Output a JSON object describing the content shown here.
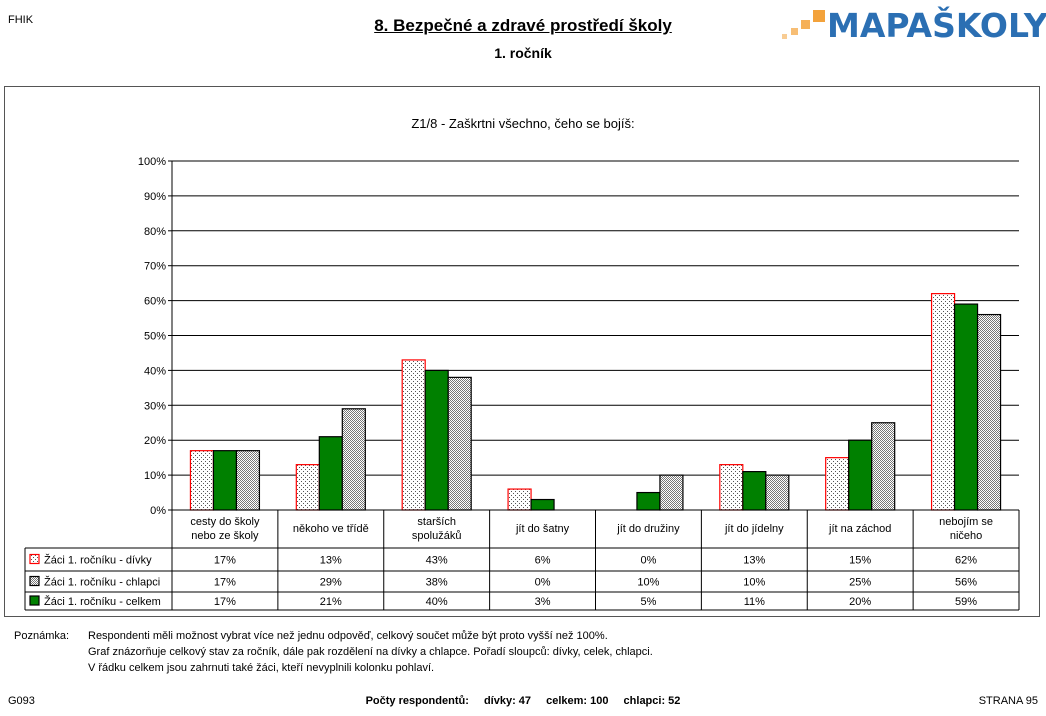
{
  "header": {
    "corner_left": "FHIK",
    "title": "8. Bezpečné a zdravé prostředí školy",
    "subtitle": "1. ročník",
    "logo_text": "MAPAŠKOLY"
  },
  "chart_data": {
    "type": "bar",
    "title": "Z1/8 - Zaškrtni všechno, čeho se bojíš:",
    "ylim": [
      0,
      100
    ],
    "yticks": [
      "0%",
      "10%",
      "20%",
      "30%",
      "40%",
      "50%",
      "60%",
      "70%",
      "80%",
      "90%",
      "100%"
    ],
    "grid": true,
    "legend": "table-left",
    "categories": [
      "cesty do školy nebo ze školy",
      "někoho ve třídě",
      "starších spolužáků",
      "jít do šatny",
      "jít do družiny",
      "jít do jídelny",
      "jít na záchod",
      "nebojím se ničeho"
    ],
    "category_lines": [
      [
        "cesty do školy",
        "nebo ze školy"
      ],
      [
        "někoho ve třídě"
      ],
      [
        "starších",
        "spolužáků"
      ],
      [
        "jít do šatny"
      ],
      [
        "jít do družiny"
      ],
      [
        "jít do jídelny"
      ],
      [
        "jít na záchod"
      ],
      [
        "nebojím se",
        "ničeho"
      ]
    ],
    "series": [
      {
        "name": "Žáci 1. ročníku - dívky",
        "values": [
          17,
          13,
          43,
          6,
          0,
          13,
          15,
          62
        ],
        "labels": [
          "17%",
          "13%",
          "43%",
          "6%",
          "0%",
          "13%",
          "15%",
          "62%"
        ],
        "color": "#ff0000"
      },
      {
        "name": "Žáci 1. ročníku - chlapci",
        "values": [
          17,
          29,
          38,
          0,
          10,
          10,
          25,
          56
        ],
        "labels": [
          "17%",
          "29%",
          "38%",
          "0%",
          "10%",
          "10%",
          "25%",
          "56%"
        ],
        "color": "#000000"
      },
      {
        "name": "Žáci 1. ročníku - celkem",
        "values": [
          17,
          21,
          40,
          3,
          5,
          11,
          20,
          59
        ],
        "labels": [
          "17%",
          "21%",
          "40%",
          "3%",
          "5%",
          "11%",
          "20%",
          "59%"
        ],
        "color": "#008000"
      }
    ]
  },
  "notes": {
    "label": "Poznámka:",
    "lines": [
      "Respondenti měli možnost vybrat více než jednu odpověď, celkový součet může být proto vyšší než 100%.",
      "Graf znázorňuje celkový stav za ročník, dále pak rozdělení na dívky a chlapce. Pořadí sloupců: dívky, celek, chlapci.",
      "V řádku celkem jsou zahrnuti také žáci, kteří nevyplnili kolonku pohlaví."
    ]
  },
  "footer": {
    "left": "G093",
    "respondents_label": "Počty respondentů:",
    "girls": "dívky: 47",
    "total": "celkem: 100",
    "boys": "chlapci: 52",
    "right": "STRANA 95"
  }
}
